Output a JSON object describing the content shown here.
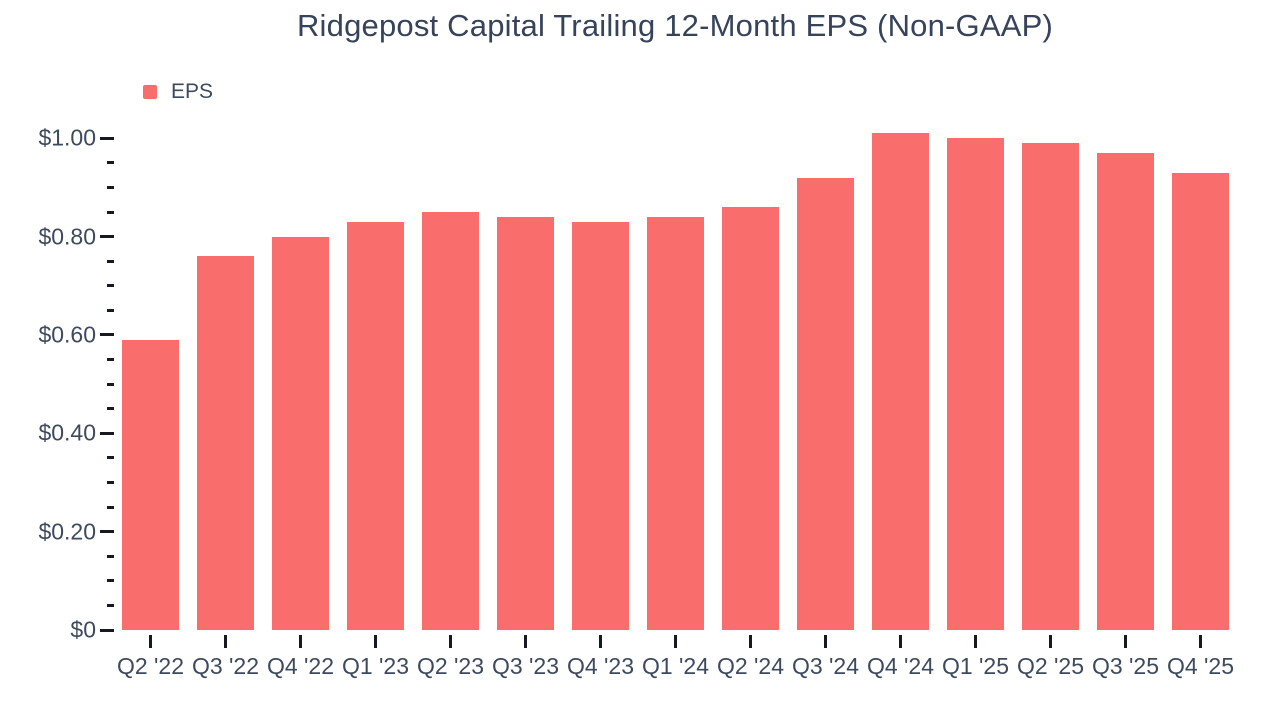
{
  "title": "Ridgepost Capital Trailing 12-Month EPS (Non-GAAP)",
  "legend": {
    "label": "EPS"
  },
  "colors": {
    "bar": "#fa6d6d",
    "text": "#3d4a5e",
    "title_text": "#36435a",
    "tick": "#16191f",
    "background": "#ffffff"
  },
  "chart_data": {
    "type": "bar",
    "title": "Ridgepost Capital Trailing 12-Month EPS (Non-GAAP)",
    "series": [
      {
        "name": "EPS",
        "values": [
          0.59,
          0.76,
          0.8,
          0.83,
          0.85,
          0.84,
          0.83,
          0.84,
          0.86,
          0.92,
          1.01,
          1.0,
          0.99,
          0.97,
          0.93
        ]
      }
    ],
    "categories": [
      "Q2 '22",
      "Q3 '22",
      "Q4 '22",
      "Q1 '23",
      "Q2 '23",
      "Q3 '23",
      "Q4 '23",
      "Q1 '24",
      "Q2 '24",
      "Q3 '24",
      "Q4 '24",
      "Q1 '25",
      "Q2 '25",
      "Q3 '25",
      "Q4 '25"
    ],
    "xlabel": "",
    "ylabel": "",
    "ylim": [
      0,
      1.05
    ],
    "y_major_ticks": [
      {
        "label": "$0",
        "value": 0.0
      },
      {
        "label": "$0.20",
        "value": 0.2
      },
      {
        "label": "$0.40",
        "value": 0.4
      },
      {
        "label": "$0.60",
        "value": 0.6
      },
      {
        "label": "$0.80",
        "value": 0.8
      },
      {
        "label": "$1.00",
        "value": 1.0
      }
    ],
    "y_minor_step": 0.05,
    "grid": false,
    "legend_position": "top-left",
    "currency_prefix": "$"
  }
}
